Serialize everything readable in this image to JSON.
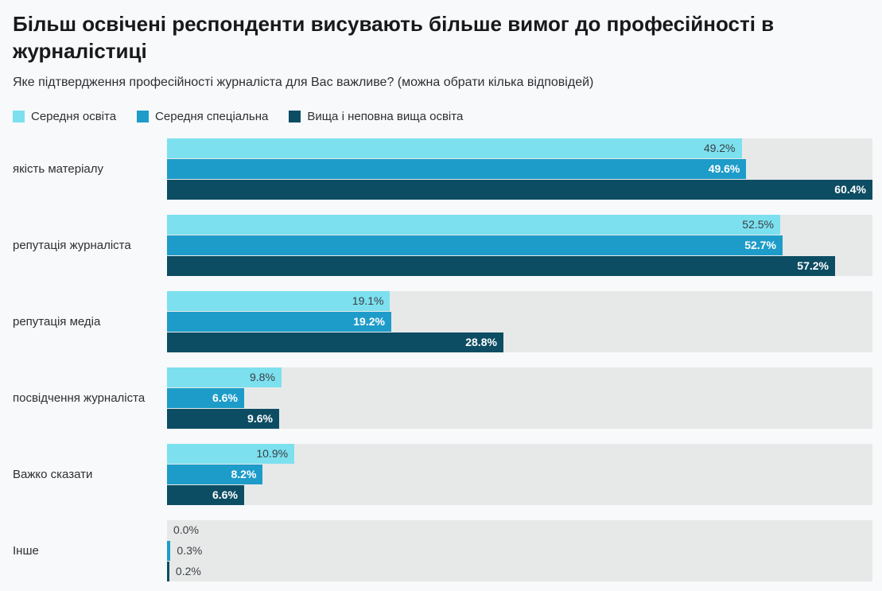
{
  "page": {
    "title": "Більш освічені респонденти висувають більше вимог до професійності в журналістиці",
    "subtitle": "Яке підтвердження професійності журналіста для Вас важливе? (можна обрати кілька відповідей)"
  },
  "colors": {
    "page_background": "#f8f9fa",
    "track": "#e7e9e9",
    "title_text": "#17191c",
    "body_text": "#2c3034",
    "value_label_dark": "#3a3f44",
    "value_label_light": "#ffffff",
    "series": [
      "#7ce0ef",
      "#1e9cc9",
      "#0d4d63"
    ]
  },
  "chart_data": {
    "type": "bar",
    "orientation": "horizontal",
    "title": "Більш освічені респонденти висувають більше вимог до професійності в журналістиці",
    "subtitle": "Яке підтвердження професійності журналіста для Вас важливе? (можна обрати кілька відповідей)",
    "categories": [
      "якість матеріалу",
      "репутація журналіста",
      "репутація медіа",
      "посвідчення журналіста",
      "Важко сказати",
      "Інше"
    ],
    "series": [
      {
        "name": "Середня освіта",
        "values": [
          49.2,
          52.5,
          19.1,
          9.8,
          10.9,
          0.0
        ]
      },
      {
        "name": "Середня спеціальна",
        "values": [
          49.6,
          52.7,
          19.2,
          6.6,
          8.2,
          0.3
        ]
      },
      {
        "name": "Вища і неповна вища освіта",
        "values": [
          60.4,
          57.2,
          28.8,
          9.6,
          6.6,
          0.2
        ]
      }
    ],
    "xlim": [
      0,
      60.4
    ],
    "value_suffix": "%",
    "value_decimals": 1,
    "legend_position": "top",
    "grid": false
  }
}
